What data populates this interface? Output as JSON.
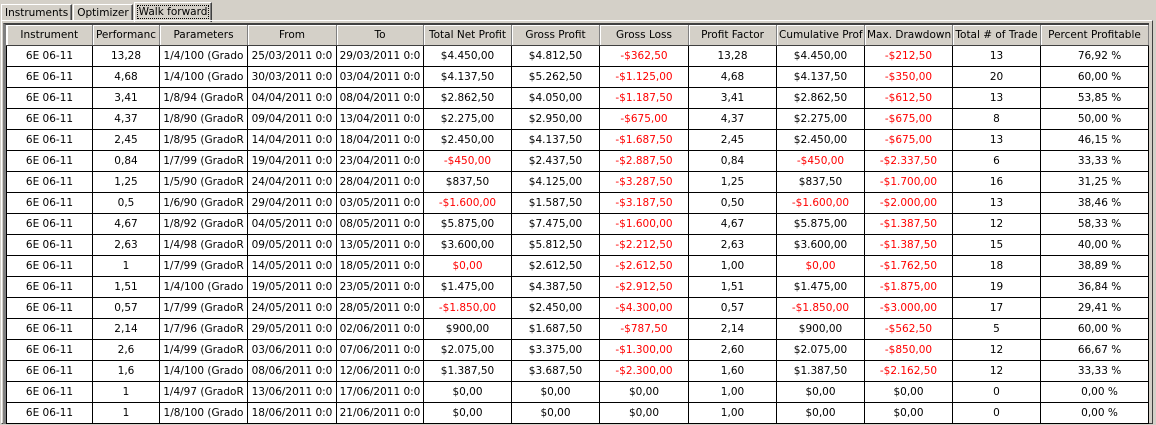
{
  "tabs": [
    {
      "label": "Instruments",
      "active": false
    },
    {
      "label": "Optimizer",
      "active": false
    },
    {
      "label": "Walk forward",
      "active": true
    }
  ],
  "colors": {
    "negative": "#ff0000",
    "text": "#000000",
    "header_bg": "#d4d0c8"
  },
  "table": {
    "columns": [
      "Instrument",
      "Performanc",
      "Parameters",
      "From",
      "To",
      "Total Net Profit",
      "Gross Profit",
      "Gross Loss",
      "Profit Factor",
      "Cumulative Prof",
      "Max. Drawdown",
      "Total # of Trade",
      "Percent Profitable"
    ],
    "rows": [
      {
        "cells": [
          "6E 06-11",
          "13,28",
          "1/4/100 (Grado",
          "25/03/2011 0:0",
          "29/03/2011 0:0",
          "$4.450,00",
          "$4.812,50",
          "-$362,50",
          "13,28",
          "$4.450,00",
          "-$212,50",
          "13",
          "76,92 %"
        ],
        "red": [
          7,
          10
        ]
      },
      {
        "cells": [
          "6E 06-11",
          "4,68",
          "1/4/100 (Grado",
          "30/03/2011 0:0",
          "03/04/2011 0:0",
          "$4.137,50",
          "$5.262,50",
          "-$1.125,00",
          "4,68",
          "$4.137,50",
          "-$350,00",
          "20",
          "60,00 %"
        ],
        "red": [
          7,
          10
        ]
      },
      {
        "cells": [
          "6E 06-11",
          "3,41",
          "1/8/94 (GradoR",
          "04/04/2011 0:0",
          "08/04/2011 0:0",
          "$2.862,50",
          "$4.050,00",
          "-$1.187,50",
          "3,41",
          "$2.862,50",
          "-$612,50",
          "13",
          "53,85 %"
        ],
        "red": [
          7,
          10
        ]
      },
      {
        "cells": [
          "6E 06-11",
          "4,37",
          "1/8/90 (GradoR",
          "09/04/2011 0:0",
          "13/04/2011 0:0",
          "$2.275,00",
          "$2.950,00",
          "-$675,00",
          "4,37",
          "$2.275,00",
          "-$675,00",
          "8",
          "50,00 %"
        ],
        "red": [
          7,
          10
        ]
      },
      {
        "cells": [
          "6E 06-11",
          "2,45",
          "1/8/95 (GradoR",
          "14/04/2011 0:0",
          "18/04/2011 0:0",
          "$2.450,00",
          "$4.137,50",
          "-$1.687,50",
          "2,45",
          "$2.450,00",
          "-$675,00",
          "13",
          "46,15 %"
        ],
        "red": [
          7,
          10
        ]
      },
      {
        "cells": [
          "6E 06-11",
          "0,84",
          "1/7/99 (GradoR",
          "19/04/2011 0:0",
          "23/04/2011 0:0",
          "-$450,00",
          "$2.437,50",
          "-$2.887,50",
          "0,84",
          "-$450,00",
          "-$2.337,50",
          "6",
          "33,33 %"
        ],
        "red": [
          5,
          7,
          9,
          10
        ]
      },
      {
        "cells": [
          "6E 06-11",
          "1,25",
          "1/5/90 (GradoR",
          "24/04/2011 0:0",
          "28/04/2011 0:0",
          "$837,50",
          "$4.125,00",
          "-$3.287,50",
          "1,25",
          "$837,50",
          "-$1.700,00",
          "16",
          "31,25 %"
        ],
        "red": [
          7,
          10
        ]
      },
      {
        "cells": [
          "6E 06-11",
          "0,5",
          "1/6/90 (GradoR",
          "29/04/2011 0:0",
          "03/05/2011 0:0",
          "-$1.600,00",
          "$1.587,50",
          "-$3.187,50",
          "0,50",
          "-$1.600,00",
          "-$2.000,00",
          "13",
          "38,46 %"
        ],
        "red": [
          5,
          7,
          9,
          10
        ]
      },
      {
        "cells": [
          "6E 06-11",
          "4,67",
          "1/8/92 (GradoR",
          "04/05/2011 0:0",
          "08/05/2011 0:0",
          "$5.875,00",
          "$7.475,00",
          "-$1.600,00",
          "4,67",
          "$5.875,00",
          "-$1.387,50",
          "12",
          "58,33 %"
        ],
        "red": [
          7,
          10
        ]
      },
      {
        "cells": [
          "6E 06-11",
          "2,63",
          "1/4/98 (GradoR",
          "09/05/2011 0:0",
          "13/05/2011 0:0",
          "$3.600,00",
          "$5.812,50",
          "-$2.212,50",
          "2,63",
          "$3.600,00",
          "-$1.387,50",
          "15",
          "40,00 %"
        ],
        "red": [
          7,
          10
        ]
      },
      {
        "cells": [
          "6E 06-11",
          "1",
          "1/7/99 (GradoR",
          "14/05/2011 0:0",
          "18/05/2011 0:0",
          "$0,00",
          "$2.612,50",
          "-$2.612,50",
          "1,00",
          "$0,00",
          "-$1.762,50",
          "18",
          "38,89 %"
        ],
        "red": [
          5,
          7,
          9,
          10
        ]
      },
      {
        "cells": [
          "6E 06-11",
          "1,51",
          "1/4/100 (Grado",
          "19/05/2011 0:0",
          "23/05/2011 0:0",
          "$1.475,00",
          "$4.387,50",
          "-$2.912,50",
          "1,51",
          "$1.475,00",
          "-$1.875,00",
          "19",
          "36,84 %"
        ],
        "red": [
          7,
          10
        ]
      },
      {
        "cells": [
          "6E 06-11",
          "0,57",
          "1/7/99 (GradoR",
          "24/05/2011 0:0",
          "28/05/2011 0:0",
          "-$1.850,00",
          "$2.450,00",
          "-$4.300,00",
          "0,57",
          "-$1.850,00",
          "-$3.000,00",
          "17",
          "29,41 %"
        ],
        "red": [
          5,
          7,
          9,
          10
        ]
      },
      {
        "cells": [
          "6E 06-11",
          "2,14",
          "1/7/96 (GradoR",
          "29/05/2011 0:0",
          "02/06/2011 0:0",
          "$900,00",
          "$1.687,50",
          "-$787,50",
          "2,14",
          "$900,00",
          "-$562,50",
          "5",
          "60,00 %"
        ],
        "red": [
          7,
          10
        ]
      },
      {
        "cells": [
          "6E 06-11",
          "2,6",
          "1/4/99 (GradoR",
          "03/06/2011 0:0",
          "07/06/2011 0:0",
          "$2.075,00",
          "$3.375,00",
          "-$1.300,00",
          "2,60",
          "$2.075,00",
          "-$850,00",
          "12",
          "66,67 %"
        ],
        "red": [
          7,
          10
        ]
      },
      {
        "cells": [
          "6E 06-11",
          "1,6",
          "1/4/100 (Grado",
          "08/06/2011 0:0",
          "12/06/2011 0:0",
          "$1.387,50",
          "$3.687,50",
          "-$2.300,00",
          "1,60",
          "$1.387,50",
          "-$2.162,50",
          "12",
          "33,33 %"
        ],
        "red": [
          7,
          10
        ]
      },
      {
        "cells": [
          "6E 06-11",
          "1",
          "1/4/97 (GradoR",
          "13/06/2011 0:0",
          "17/06/2011 0:0",
          "$0,00",
          "$0,00",
          "$0,00",
          "1,00",
          "$0,00",
          "$0,00",
          "0",
          "0,00 %"
        ],
        "red": []
      },
      {
        "cells": [
          "6E 06-11",
          "1",
          "1/8/100 (Grado",
          "18/06/2011 0:0",
          "21/06/2011 0:0",
          "$0,00",
          "$0,00",
          "$0,00",
          "1,00",
          "$0,00",
          "$0,00",
          "0",
          "0,00 %"
        ],
        "red": []
      }
    ]
  }
}
